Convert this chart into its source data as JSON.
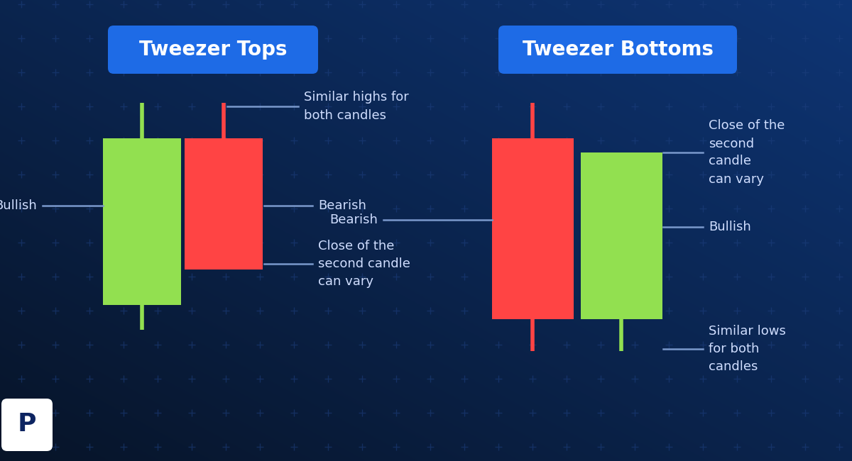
{
  "bg_color_tl": "#0a1a3a",
  "bg_color_br": "#0d3a8a",
  "dot_color": "#1e3d7a",
  "green_candle": "#92E050",
  "red_candle": "#FF4444",
  "wick_color_green": "#92E050",
  "wick_color_red": "#FF4444",
  "label_box_color": "#1E6BE6",
  "label_text_color": "#FFFFFF",
  "annotation_color": "#D0DEFF",
  "line_color": "#7A99CC",
  "title_left": "Tweezer Tops",
  "title_right": "Tweezer Bottoms",
  "left_labels": {
    "bullish": "Bullish",
    "bearish": "Bearish",
    "similar_highs": "Similar highs for\nboth candles",
    "close_vary": "Close of the\nsecond candle\ncan vary"
  },
  "right_labels": {
    "bearish": "Bearish",
    "bullish": "Bullish",
    "close_vary": "Close of the\nsecond\ncandle\ncan vary",
    "similar_lows": "Similar lows\nfor both\ncandles"
  }
}
